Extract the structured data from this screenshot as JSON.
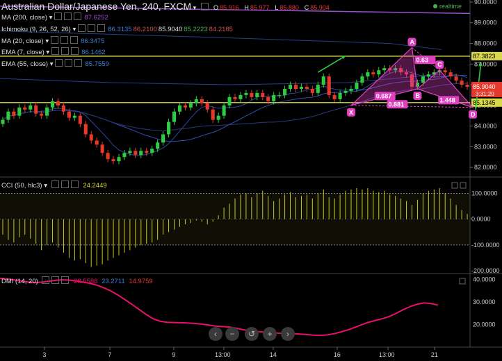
{
  "header": {
    "symbol": "Australian Dollar/Japanese Yen, 240, FXCM",
    "ohlc_labels": [
      "O",
      "H",
      "L",
      "C"
    ],
    "ohlc": [
      "85.916",
      "85.977",
      "85.880",
      "85.904"
    ],
    "realtime": "realtime"
  },
  "indicators": [
    {
      "label": "MA (200, close)",
      "values": [
        "87.6252"
      ],
      "colors": [
        "#9a4fd0"
      ]
    },
    {
      "label": "Ichimoku (9, 26, 52, 26)",
      "values": [
        "86.3135",
        "86.2100",
        "85.9040",
        "85.2223",
        "84.2185"
      ],
      "colors": [
        "#3d7fd6",
        "#d05050",
        "#e0e0e0",
        "#4caf50",
        "#d05050"
      ]
    },
    {
      "label": "MA (20, close)",
      "values": [
        "86.3475"
      ],
      "colors": [
        "#3d7fd6"
      ]
    },
    {
      "label": "EMA (7, close)",
      "values": [
        "86.1462"
      ],
      "colors": [
        "#3d7fd6"
      ]
    },
    {
      "label": "EMA (55, close)",
      "values": [
        "85.7559"
      ],
      "colors": [
        "#3d7fd6"
      ]
    }
  ],
  "colors": {
    "up": "#2ecc40",
    "down": "#e5392c",
    "pattern": "#e040c0",
    "hline": "#d8d84a",
    "cci": "#c8c820",
    "dmi": "#e8106a",
    "ma200": "#9a4fd0",
    "ma": "#3050b0"
  },
  "chart_data": [
    {
      "type": "candlestick",
      "title": "Australian Dollar/Japanese Yen, 240, FXCM",
      "ylim": [
        81.6,
        90.1
      ],
      "y_ticks": [
        "82.0000",
        "83.0000",
        "84.0000",
        "85.0000",
        "86.0000",
        "87.0000",
        "88.0000",
        "89.0000",
        "90.0000"
      ],
      "x_ticks": [
        "3",
        "7",
        "9",
        "13:00",
        "14",
        "16",
        "13:00",
        "21"
      ],
      "horizontal_lines": [
        {
          "value": 87.3823,
          "label": "87.3823"
        },
        {
          "value": 85.1345,
          "label": "85.1345"
        }
      ],
      "last_price": {
        "value": 85.904,
        "label": "85.9040",
        "countdown": "3:31:20"
      },
      "candles_close": [
        84.3,
        84.7,
        84.5,
        84.9,
        84.8,
        85.0,
        84.6,
        84.5,
        84.9,
        85.2,
        85.0,
        84.7,
        84.4,
        84.5,
        84.1,
        83.6,
        83.3,
        83.1,
        82.7,
        82.4,
        82.3,
        82.5,
        82.7,
        82.8,
        82.6,
        82.8,
        82.7,
        82.9,
        83.2,
        83.6,
        84.2,
        84.7,
        85.0,
        84.9,
        85.1,
        85.3,
        85.1,
        84.8,
        84.3,
        84.5,
        85.0,
        85.4,
        85.3,
        85.5,
        85.6,
        85.4,
        85.6,
        85.4,
        85.2,
        85.5,
        85.5,
        85.8,
        86.0,
        85.8,
        85.9,
        85.8,
        85.6,
        86.0,
        86.4,
        85.5,
        85.3,
        85.6,
        85.7,
        85.8,
        86.1,
        86.4,
        86.6,
        86.5,
        86.7,
        86.8,
        86.7,
        86.8,
        86.6,
        86.5,
        85.9,
        86.1,
        86.4,
        86.5,
        86.6,
        86.7,
        86.6,
        86.4,
        86.2,
        86.0,
        85.9
      ],
      "harmonic_pattern": {
        "points": [
          {
            "name": "X",
            "x": 63,
            "y": 85.0
          },
          {
            "name": "A",
            "x": 74,
            "y": 87.8
          },
          {
            "name": "B",
            "x": 75,
            "y": 85.8
          },
          {
            "name": "C",
            "x": 79,
            "y": 86.7
          },
          {
            "name": "D",
            "x": 85,
            "y": 84.9
          }
        ],
        "ratios": [
          "0.687",
          "0.881",
          "0.63",
          "1.448"
        ]
      }
    },
    {
      "type": "bar",
      "title": "CCI (50, hlc3)",
      "last_value": "24.2449",
      "ylim": [
        -205,
        155
      ],
      "y_ticks": [
        "100.0000",
        "0.0000",
        "-100.0000",
        "-200.0000"
      ],
      "reference_lines": [
        100,
        -100
      ],
      "values": [
        -60,
        -80,
        -90,
        -70,
        -60,
        -75,
        -95,
        -120,
        -100,
        -90,
        -110,
        -130,
        -150,
        -160,
        -155,
        -170,
        -185,
        -180,
        -175,
        -160,
        -150,
        -140,
        -130,
        -120,
        -110,
        -100,
        -95,
        -90,
        -80,
        -60,
        -50,
        -40,
        -30,
        -20,
        -15,
        -5,
        -10,
        -20,
        -10,
        15,
        45,
        60,
        80,
        95,
        100,
        85,
        100,
        110,
        90,
        70,
        80,
        95,
        105,
        85,
        90,
        95,
        80,
        100,
        115,
        85,
        80,
        95,
        110,
        115,
        120,
        115,
        120,
        110,
        105,
        110,
        95,
        90,
        80,
        70,
        55,
        75,
        100,
        110,
        115,
        120,
        100,
        80,
        55,
        35,
        20
      ]
    },
    {
      "type": "line",
      "title": "DMI (14, 20)",
      "last_values": [
        "28.5588",
        "23.2711",
        "14.9759"
      ],
      "ylim": [
        10,
        42
      ],
      "y_ticks": [
        "40.0000",
        "30.0000",
        "20.0000"
      ],
      "x": [
        0,
        10,
        20,
        30,
        40,
        50,
        60,
        70,
        80,
        90,
        100,
        110,
        120,
        130,
        140,
        150,
        160,
        170,
        180,
        190,
        200,
        210,
        220,
        230,
        240,
        250,
        260,
        270,
        280,
        290,
        300,
        310,
        320,
        330,
        340,
        350,
        360,
        370,
        380,
        390,
        400,
        410,
        420,
        430,
        440,
        450,
        460,
        470,
        480,
        490,
        500,
        510,
        520,
        530,
        540,
        550,
        560,
        570,
        580,
        590,
        600,
        610,
        620,
        630
      ],
      "values": [
        40.5,
        40.2,
        39.8,
        39.3,
        38.9,
        38.6,
        38.8,
        39.2,
        39.6,
        39.8,
        39.7,
        39.3,
        38.8,
        38.2,
        37.4,
        36.2,
        34.8,
        33.0,
        31.0,
        28.9,
        26.7,
        24.5,
        22.6,
        21.5,
        21.0,
        20.9,
        20.8,
        20.7,
        20.5,
        20.2,
        19.8,
        19.3,
        19.1,
        18.9,
        18.4,
        17.7,
        17.2,
        16.9,
        16.7,
        16.5,
        16.2,
        16.1,
        16.0,
        15.8,
        15.6,
        15.3,
        15.2,
        15.4,
        15.9,
        16.7,
        17.6,
        18.7,
        19.9,
        21.0,
        21.8,
        22.6,
        23.6,
        25.0,
        26.6,
        28.0,
        29.0,
        29.6,
        29.3,
        28.6
      ]
    }
  ],
  "navigation": [
    "‹",
    "−",
    "↺",
    "+",
    "›"
  ]
}
